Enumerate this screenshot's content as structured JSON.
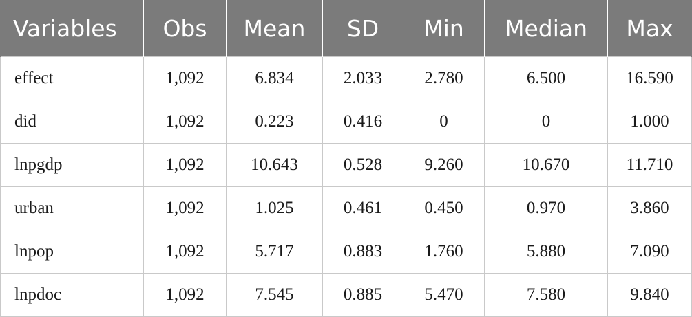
{
  "table": {
    "headers": [
      "Variables",
      "Obs",
      "Mean",
      "SD",
      "Min",
      "Median",
      "Max"
    ],
    "rows": [
      [
        "effect",
        "1,092",
        "6.834",
        "2.033",
        "2.780",
        "6.500",
        "16.590"
      ],
      [
        "did",
        "1,092",
        "0.223",
        "0.416",
        "0",
        "0",
        "1.000"
      ],
      [
        "lnpgdp",
        "1,092",
        "10.643",
        "0.528",
        "9.260",
        "10.670",
        "11.710"
      ],
      [
        "urban",
        "1,092",
        "1.025",
        "0.461",
        "0.450",
        "0.970",
        "3.860"
      ],
      [
        "lnpop",
        "1,092",
        "5.717",
        "0.883",
        "1.760",
        "5.880",
        "7.090"
      ],
      [
        "lnpdoc",
        "1,092",
        "7.545",
        "0.885",
        "5.470",
        "7.580",
        "9.840"
      ]
    ],
    "colors": {
      "header_background": "#7b7b7b",
      "header_text": "#ffffff",
      "grid_line": "#c9c9c9",
      "body_text": "#1a1a1a"
    }
  }
}
